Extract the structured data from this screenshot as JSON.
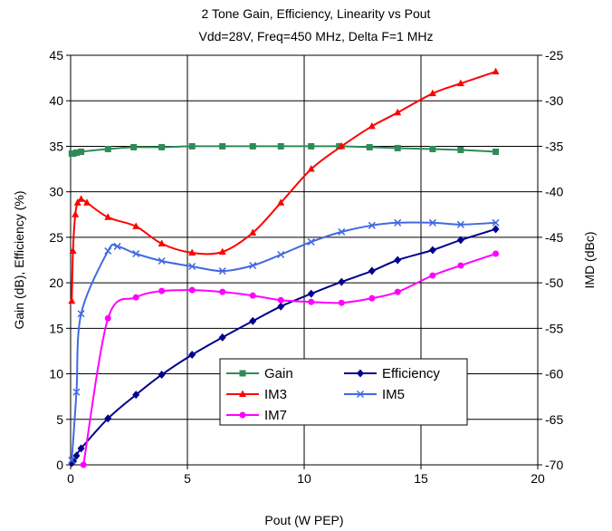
{
  "chart_data": {
    "type": "line",
    "title": "2 Tone Gain, Efficiency, Linearity vs Pout",
    "subtitle": "Vdd=28V, Freq=450 MHz, Delta F=1 MHz",
    "xlabel": "Pout (W PEP)",
    "ylabel": "Gain (dB), Efficiency (%)",
    "y2label": "IMD (dBc)",
    "xlim": [
      0,
      20
    ],
    "ylim": [
      0,
      45
    ],
    "y2lim": [
      -70,
      -25
    ],
    "xticks": [
      "0",
      "5",
      "10",
      "15",
      "20"
    ],
    "yticks": [
      "0",
      "5",
      "10",
      "15",
      "20",
      "25",
      "30",
      "35",
      "40",
      "45"
    ],
    "y2ticks": [
      "-70",
      "-65",
      "-60",
      "-55",
      "-50",
      "-45",
      "-40",
      "-35",
      "-30",
      "-25"
    ],
    "grid": true,
    "legend_position": "lower-center",
    "series": [
      {
        "name": "Gain",
        "axis": "left",
        "color": "#2e8b57",
        "marker": "square",
        "x": [
          0.05,
          0.12,
          0.25,
          0.45,
          1.6,
          2.7,
          3.9,
          5.2,
          6.5,
          7.8,
          9.0,
          10.3,
          11.5,
          12.8,
          14.0,
          15.5,
          16.7,
          18.2
        ],
        "y": [
          34.2,
          34.2,
          34.3,
          34.4,
          34.7,
          34.9,
          34.9,
          35.0,
          35.0,
          35.0,
          35.0,
          35.0,
          35.0,
          34.9,
          34.8,
          34.7,
          34.6,
          34.4
        ]
      },
      {
        "name": "Efficiency",
        "axis": "left",
        "color": "#00008b",
        "marker": "diamond",
        "x": [
          0.05,
          0.12,
          0.25,
          0.45,
          1.6,
          2.8,
          3.9,
          5.2,
          6.5,
          7.8,
          9.0,
          10.3,
          11.6,
          12.9,
          14.0,
          15.5,
          16.7,
          18.2
        ],
        "y": [
          0.2,
          0.4,
          1.0,
          1.8,
          5.1,
          7.7,
          9.9,
          12.1,
          14.0,
          15.8,
          17.4,
          18.8,
          20.1,
          21.3,
          22.5,
          23.6,
          24.7,
          25.9
        ]
      },
      {
        "name": "IM3",
        "axis": "right",
        "color": "#ff0000",
        "marker": "triangle",
        "x": [
          0.05,
          0.1,
          0.2,
          0.3,
          0.45,
          0.7,
          1.6,
          2.8,
          3.9,
          5.2,
          6.5,
          7.8,
          9.0,
          10.3,
          11.6,
          12.9,
          14.0,
          15.5,
          16.7,
          18.2
        ],
        "y": [
          -52.0,
          -46.5,
          -42.5,
          -41.2,
          -40.8,
          -41.2,
          -42.8,
          -43.8,
          -45.7,
          -46.7,
          -46.6,
          -44.5,
          -41.2,
          -37.5,
          -35.0,
          -32.8,
          -31.3,
          -29.2,
          -28.1,
          -26.8
        ]
      },
      {
        "name": "IM5",
        "axis": "right",
        "color": "#4169e1",
        "marker": "x",
        "x": [
          0.05,
          0.25,
          0.45,
          1.6,
          2.0,
          2.8,
          3.9,
          5.2,
          6.5,
          7.8,
          9.0,
          10.3,
          11.6,
          12.9,
          14.0,
          15.5,
          16.7,
          18.2
        ],
        "y": [
          -69.5,
          -62.0,
          -53.4,
          -46.5,
          -46.0,
          -46.8,
          -47.6,
          -48.2,
          -48.7,
          -48.1,
          -46.9,
          -45.5,
          -44.4,
          -43.7,
          -43.4,
          -43.4,
          -43.6,
          -43.4
        ]
      },
      {
        "name": "IM7",
        "axis": "right",
        "color": "#ff00ff",
        "marker": "circle",
        "x": [
          0.55,
          1.6,
          2.8,
          3.9,
          5.2,
          6.5,
          7.8,
          9.0,
          10.3,
          11.6,
          12.9,
          14.0,
          15.5,
          16.7,
          18.2
        ],
        "y": [
          -70.0,
          -53.9,
          -51.6,
          -50.9,
          -50.8,
          -51.0,
          -51.4,
          -51.9,
          -52.1,
          -52.2,
          -51.7,
          -51.0,
          -49.2,
          -48.1,
          -46.8
        ]
      }
    ]
  }
}
